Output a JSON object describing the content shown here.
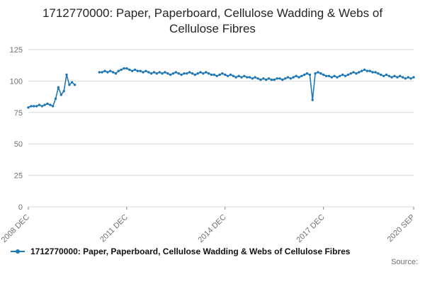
{
  "chart_data": {
    "type": "line",
    "title": "1712770000: Paper, Paperboard, Cellulose Wadding & Webs of Cellulose Fibres",
    "legend_label": "1712770000: Paper, Paperboard, Cellulose Wadding & Webs of Cellulose Fibres",
    "source_label": "Source:",
    "x_unit": "month",
    "x_start": "2008 DEC",
    "x_end": "2020 SEP",
    "ylim": [
      0,
      125
    ],
    "y_ticks": [
      0,
      25,
      50,
      75,
      100,
      125
    ],
    "x_ticks": [
      {
        "index": 0,
        "label": "2008 DEC"
      },
      {
        "index": 36,
        "label": "2011 DEC"
      },
      {
        "index": 72,
        "label": "2014 DEC"
      },
      {
        "index": 108,
        "label": "2017 DEC"
      },
      {
        "index": 141,
        "label": "2020 SEP"
      }
    ],
    "grid": true,
    "grid_color": "#d9d9d9",
    "line_color": "#1f77b4",
    "legend_position": "bottom",
    "values": [
      79,
      80,
      80,
      80,
      81,
      80,
      81,
      82,
      81,
      80,
      86,
      95,
      89,
      92,
      105,
      97,
      99,
      97,
      null,
      null,
      null,
      null,
      null,
      null,
      null,
      null,
      107,
      107,
      108,
      107,
      108,
      107,
      106,
      108,
      109,
      110,
      110,
      109,
      108,
      109,
      108,
      108,
      107,
      108,
      107,
      106,
      107,
      106,
      107,
      106,
      107,
      106,
      105,
      106,
      107,
      106,
      105,
      106,
      106,
      107,
      106,
      105,
      106,
      107,
      106,
      107,
      106,
      105,
      105,
      104,
      105,
      106,
      105,
      104,
      105,
      104,
      103,
      104,
      103,
      104,
      103,
      103,
      102,
      103,
      102,
      101,
      102,
      101,
      102,
      101,
      101,
      102,
      102,
      101,
      102,
      103,
      102,
      103,
      104,
      103,
      104,
      105,
      106,
      105,
      85,
      106,
      107,
      106,
      105,
      104,
      104,
      103,
      104,
      103,
      104,
      105,
      104,
      105,
      106,
      107,
      106,
      107,
      108,
      109,
      108,
      108,
      107,
      107,
      106,
      105,
      104,
      105,
      104,
      103,
      104,
      103,
      104,
      103,
      102,
      103,
      102,
      103
    ]
  }
}
